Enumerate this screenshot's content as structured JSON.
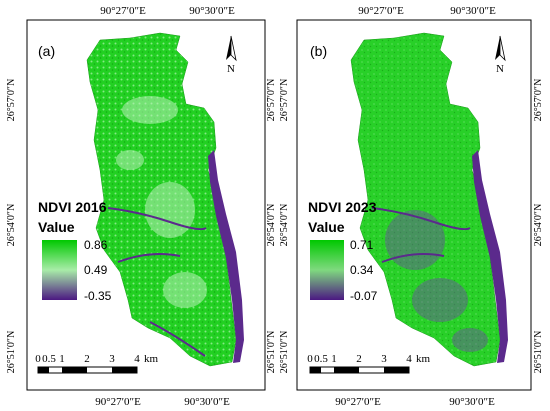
{
  "panels": [
    {
      "label": "(a)",
      "legend_title": "NDVI 2016",
      "value_label": "Value",
      "ramp": {
        "max": "0.86",
        "mid": "0.49",
        "min": "-0.35"
      },
      "top_ticks": [
        "90°27′0″E",
        "90°30′0″E"
      ],
      "bottom_ticks": [
        "90°27′0″E",
        "90°30′0″E"
      ],
      "left_ticks": [
        "26°57′0″N",
        "26°54′0″N",
        "26°51′0″N"
      ],
      "right_ticks": [
        "26°57′0″N",
        "26°54′0″N",
        "26°51′0″N"
      ],
      "north": "N",
      "scale": {
        "ticks": [
          "0",
          "0.5",
          "1",
          "2",
          "3",
          "4"
        ],
        "unit": "km"
      }
    },
    {
      "label": "(b)",
      "legend_title": "NDVI 2023",
      "value_label": "Value",
      "ramp": {
        "max": "0.71",
        "mid": "0.34",
        "min": "-0.07"
      },
      "top_ticks": [
        "90°27′0″E",
        "90°30′0″E"
      ],
      "bottom_ticks": [
        "90°27′0″E",
        "90°30′0″E"
      ],
      "left_ticks": [
        "26°57′0″N",
        "26°54′0″N",
        "26°51′0″N"
      ],
      "right_ticks": [
        "26°57′0″N",
        "26°54′0″N",
        "26°51′0″N"
      ],
      "north": "N",
      "scale": {
        "ticks": [
          "0",
          "0.5",
          "1",
          "2",
          "3",
          "4"
        ],
        "unit": "km"
      }
    }
  ],
  "colors": {
    "high": "#1fd11f",
    "mid": "#9be89b",
    "low": "#5a1f8a",
    "river": "#5b2a8c"
  }
}
